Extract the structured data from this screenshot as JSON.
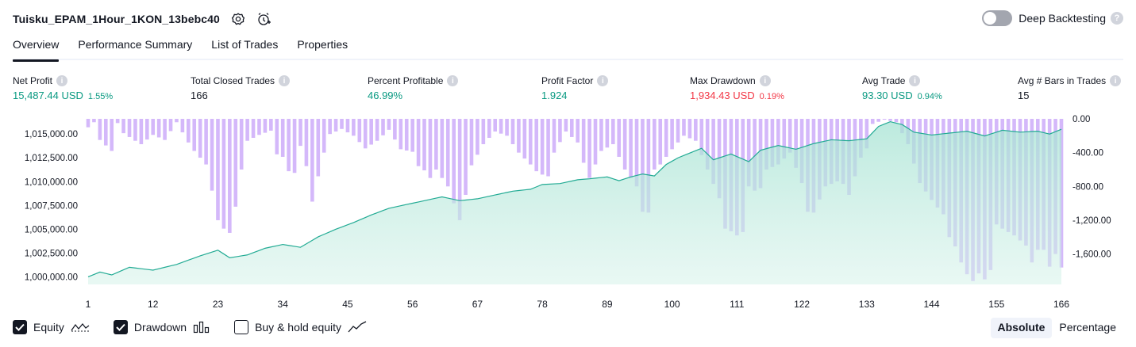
{
  "header": {
    "strategy_name": "Tuisku_EPAM_1Hour_1KON_13bebc40",
    "deep_backtesting_label": "Deep Backtesting",
    "deep_backtesting_enabled": false,
    "help_glyph": "?"
  },
  "tabs": [
    {
      "label": "Overview",
      "active": true
    },
    {
      "label": "Performance Summary",
      "active": false
    },
    {
      "label": "List of Trades",
      "active": false
    },
    {
      "label": "Properties",
      "active": false
    }
  ],
  "metrics": {
    "info_glyph": "i",
    "net_profit": {
      "label": "Net Profit",
      "value": "15,487.44 USD",
      "pct": "1.55%"
    },
    "total_closed_trades": {
      "label": "Total Closed Trades",
      "value": "166"
    },
    "percent_profitable": {
      "label": "Percent Profitable",
      "value": "46.99%"
    },
    "profit_factor": {
      "label": "Profit Factor",
      "value": "1.924"
    },
    "max_drawdown": {
      "label": "Max Drawdown",
      "value": "1,934.43 USD",
      "pct": "0.19%"
    },
    "avg_trade": {
      "label": "Avg Trade",
      "value": "93.30 USD",
      "pct": "0.94%"
    },
    "avg_bars": {
      "label": "Avg # Bars in Trades",
      "value": "15"
    }
  },
  "colors": {
    "equity_line": "#22ab94",
    "equity_fill": "#d6f2ea",
    "drawdown_bar": "#d4b8fa",
    "profit_green": "#089981",
    "loss_red": "#f23645"
  },
  "chart_data": {
    "type": "area",
    "x_tick_labels": [
      "1",
      "12",
      "23",
      "34",
      "45",
      "56",
      "67",
      "78",
      "89",
      "100",
      "111",
      "122",
      "133",
      "144",
      "155",
      "166"
    ],
    "x_range": [
      1,
      166
    ],
    "equity_axis": {
      "ticks": [
        "1,000,000.00",
        "1,002,500.00",
        "1,005,000.00",
        "1,007,500.00",
        "1,010,000.00",
        "1,012,500.00",
        "1,015,000.00"
      ],
      "tick_values": [
        1000000,
        1002500,
        1005000,
        1007500,
        1010000,
        1012500,
        1015000
      ],
      "range": [
        999200,
        1016600
      ]
    },
    "drawdown_axis": {
      "ticks": [
        "0.00",
        "-400.00",
        "-800.00",
        "-1,200.00",
        "-1,600.00"
      ],
      "tick_values": [
        0,
        -400,
        -800,
        -1200,
        -1600
      ],
      "range": [
        -1960,
        0
      ]
    },
    "series": [
      {
        "name": "Equity",
        "equity_key_points": [
          [
            1,
            1000000
          ],
          [
            3,
            1000500
          ],
          [
            5,
            1000200
          ],
          [
            8,
            1001000
          ],
          [
            12,
            1000700
          ],
          [
            16,
            1001300
          ],
          [
            20,
            1002200
          ],
          [
            23,
            1002800
          ],
          [
            25,
            1002000
          ],
          [
            28,
            1002300
          ],
          [
            31,
            1003000
          ],
          [
            34,
            1003400
          ],
          [
            37,
            1003100
          ],
          [
            40,
            1004200
          ],
          [
            43,
            1005000
          ],
          [
            46,
            1005700
          ],
          [
            49,
            1006500
          ],
          [
            52,
            1007200
          ],
          [
            55,
            1007600
          ],
          [
            58,
            1008000
          ],
          [
            61,
            1008400
          ],
          [
            64,
            1008000
          ],
          [
            67,
            1008200
          ],
          [
            70,
            1008600
          ],
          [
            73,
            1009000
          ],
          [
            76,
            1009200
          ],
          [
            78,
            1009700
          ],
          [
            81,
            1009800
          ],
          [
            84,
            1010200
          ],
          [
            86,
            1010300
          ],
          [
            89,
            1010500
          ],
          [
            91,
            1010100
          ],
          [
            93,
            1010500
          ],
          [
            95,
            1010800
          ],
          [
            97,
            1010600
          ],
          [
            99,
            1011800
          ],
          [
            101,
            1012500
          ],
          [
            103,
            1013000
          ],
          [
            105,
            1013500
          ],
          [
            107,
            1012300
          ],
          [
            110,
            1012900
          ],
          [
            113,
            1012100
          ],
          [
            115,
            1013300
          ],
          [
            118,
            1013800
          ],
          [
            121,
            1013400
          ],
          [
            124,
            1014000
          ],
          [
            127,
            1014400
          ],
          [
            130,
            1014300
          ],
          [
            133,
            1014500
          ],
          [
            135,
            1015800
          ],
          [
            137,
            1016300
          ],
          [
            139,
            1016000
          ],
          [
            141,
            1015200
          ],
          [
            144,
            1014900
          ],
          [
            147,
            1015100
          ],
          [
            150,
            1015300
          ],
          [
            153,
            1014800
          ],
          [
            156,
            1015400
          ],
          [
            159,
            1015200
          ],
          [
            162,
            1015300
          ],
          [
            164,
            1015000
          ],
          [
            166,
            1015500
          ]
        ]
      },
      {
        "name": "Drawdown",
        "drawdown_key_points": [
          [
            1,
            -100
          ],
          [
            2,
            -40
          ],
          [
            3,
            -250
          ],
          [
            5,
            -380
          ],
          [
            6,
            -50
          ],
          [
            7,
            -170
          ],
          [
            9,
            -260
          ],
          [
            10,
            -300
          ],
          [
            12,
            -190
          ],
          [
            13,
            -220
          ],
          [
            14,
            -250
          ],
          [
            16,
            -40
          ],
          [
            18,
            -280
          ],
          [
            19,
            -380
          ],
          [
            21,
            -540
          ],
          [
            22,
            -850
          ],
          [
            23,
            -1200
          ],
          [
            24,
            -1300
          ],
          [
            25,
            -1350
          ],
          [
            26,
            -1040
          ],
          [
            27,
            -600
          ],
          [
            28,
            -260
          ],
          [
            30,
            -190
          ],
          [
            32,
            -140
          ],
          [
            33,
            -420
          ],
          [
            34,
            -450
          ],
          [
            35,
            -620
          ],
          [
            36,
            -640
          ],
          [
            37,
            -320
          ],
          [
            38,
            -560
          ],
          [
            39,
            -980
          ],
          [
            40,
            -680
          ],
          [
            41,
            -400
          ],
          [
            42,
            -180
          ],
          [
            44,
            -120
          ],
          [
            46,
            -200
          ],
          [
            48,
            -350
          ],
          [
            50,
            -260
          ],
          [
            52,
            -130
          ],
          [
            54,
            -360
          ],
          [
            56,
            -390
          ],
          [
            57,
            -560
          ],
          [
            58,
            -610
          ],
          [
            59,
            -700
          ],
          [
            60,
            -600
          ],
          [
            62,
            -800
          ],
          [
            64,
            -1200
          ],
          [
            65,
            -900
          ],
          [
            66,
            -550
          ],
          [
            68,
            -300
          ],
          [
            70,
            -150
          ],
          [
            72,
            -200
          ],
          [
            74,
            -400
          ],
          [
            76,
            -540
          ],
          [
            77,
            -620
          ],
          [
            78,
            -660
          ],
          [
            79,
            -680
          ],
          [
            80,
            -400
          ],
          [
            82,
            -150
          ],
          [
            84,
            -280
          ],
          [
            85,
            -520
          ],
          [
            86,
            -700
          ],
          [
            88,
            -380
          ],
          [
            90,
            -300
          ],
          [
            92,
            -600
          ],
          [
            94,
            -800
          ],
          [
            95,
            -1100
          ],
          [
            96,
            -1110
          ],
          [
            97,
            -600
          ],
          [
            98,
            -540
          ],
          [
            100,
            -360
          ],
          [
            102,
            -200
          ],
          [
            104,
            -260
          ],
          [
            106,
            -600
          ],
          [
            108,
            -940
          ],
          [
            109,
            -1300
          ],
          [
            110,
            -1330
          ],
          [
            111,
            -1380
          ],
          [
            112,
            -1340
          ],
          [
            113,
            -800
          ],
          [
            114,
            -850
          ],
          [
            115,
            -820
          ],
          [
            116,
            -600
          ],
          [
            118,
            -540
          ],
          [
            120,
            -400
          ],
          [
            122,
            -760
          ],
          [
            123,
            -1100
          ],
          [
            124,
            -1110
          ],
          [
            126,
            -800
          ],
          [
            128,
            -740
          ],
          [
            129,
            -770
          ],
          [
            130,
            -900
          ],
          [
            132,
            -460
          ],
          [
            133,
            -350
          ],
          [
            134,
            -60
          ],
          [
            136,
            -10
          ],
          [
            138,
            -40
          ],
          [
            140,
            -300
          ],
          [
            142,
            -760
          ],
          [
            143,
            -860
          ],
          [
            144,
            -960
          ],
          [
            145,
            -1050
          ],
          [
            146,
            -1130
          ],
          [
            147,
            -1400
          ],
          [
            148,
            -1510
          ],
          [
            149,
            -1700
          ],
          [
            150,
            -1840
          ],
          [
            151,
            -1920
          ],
          [
            152,
            -1830
          ],
          [
            153,
            -1900
          ],
          [
            154,
            -1790
          ],
          [
            155,
            -1250
          ],
          [
            156,
            -1300
          ],
          [
            157,
            -1340
          ],
          [
            158,
            -1380
          ],
          [
            159,
            -1440
          ],
          [
            160,
            -1500
          ],
          [
            161,
            -1700
          ],
          [
            162,
            -1550
          ],
          [
            163,
            -1550
          ],
          [
            164,
            -1750
          ],
          [
            165,
            -1600
          ],
          [
            166,
            -1760
          ]
        ]
      },
      {
        "name": "Buy & hold equity",
        "visible": false
      }
    ],
    "legend": [
      {
        "label": "Equity",
        "checked": true,
        "icon": "equity-line-icon"
      },
      {
        "label": "Drawdown",
        "checked": true,
        "icon": "drawdown-bars-icon"
      },
      {
        "label": "Buy & hold equity",
        "checked": false,
        "icon": "buy-hold-line-icon"
      }
    ],
    "scale_modes": [
      {
        "label": "Absolute",
        "active": true
      },
      {
        "label": "Percentage",
        "active": false
      }
    ]
  }
}
